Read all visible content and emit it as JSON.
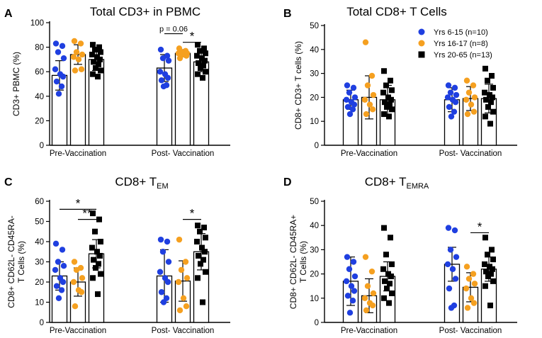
{
  "figure": {
    "colors": {
      "g1": "#1f3fe0",
      "g2": "#f5a020",
      "g3": "#000000"
    },
    "legend": [
      "Yrs 6-15 (n=10)",
      "Yrs 16-17 (n=8)",
      "Yrs 20-65 (n=13)"
    ]
  },
  "chart_data": [
    {
      "type": "bar",
      "panel_letter": "A",
      "title": "Total CD3+ in PBMC",
      "title_sub": "",
      "ylabel_lines": [
        "CD3+ PBMC (%)"
      ],
      "ylim": [
        0,
        100
      ],
      "yticks": [
        0,
        20,
        40,
        60,
        80,
        100
      ],
      "categories": [
        "Pre-Vaccination",
        "Post- Vaccination"
      ],
      "series": [
        {
          "name": "Yrs 6-15 (n=10)",
          "means": [
            57,
            63
          ],
          "sd": [
            12,
            11
          ],
          "points": [
            [
              83,
              81,
              76,
              71,
              62,
              58,
              56,
              52,
              48,
              42
            ],
            [
              78,
              73,
              71,
              69,
              60,
              58,
              55,
              53,
              49,
              48
            ]
          ]
        },
        {
          "name": "Yrs 16-17 (n=8)",
          "means": [
            74,
            75
          ],
          "sd": [
            8,
            3
          ],
          "points": [
            [
              85,
              83,
              76,
              74,
              72,
              70,
              62,
              61
            ],
            [
              79,
              77,
              76,
              75,
              75,
              74,
              73,
              71
            ]
          ]
        },
        {
          "name": "Yrs 20-65 (n=13)",
          "means": [
            70,
            68
          ],
          "sd": [
            9,
            8
          ],
          "points": [
            [
              82,
              80,
              78,
              76,
              74,
              72,
              70,
              68,
              66,
              63,
              61,
              58,
              56
            ],
            [
              82,
              79,
              77,
              75,
              73,
              71,
              69,
              67,
              65,
              63,
              60,
              58,
              55
            ]
          ]
        }
      ],
      "annotations": [
        {
          "text": "p = 0.06",
          "cat": 1,
          "from": 0,
          "to": 1,
          "y": 91
        },
        {
          "text": "*",
          "cat": 1,
          "from": 1,
          "to": 2,
          "y": 84
        }
      ]
    },
    {
      "type": "bar",
      "panel_letter": "B",
      "title": "Total CD8+ T Cells",
      "title_sub": "",
      "ylabel_lines": [
        "CD8+ CD3+ T cells (%)"
      ],
      "ylim": [
        0,
        50
      ],
      "yticks": [
        0,
        10,
        20,
        30,
        40,
        50
      ],
      "categories": [
        "Pre-Vaccination",
        "Post- Vaccination"
      ],
      "series": [
        {
          "name": "Yrs 6-15 (n=10)",
          "means": [
            19,
            19
          ],
          "sd": [
            4,
            5
          ],
          "points": [
            [
              25,
              24,
              22,
              20,
              19,
              18,
              17,
              16,
              15,
              13
            ],
            [
              25,
              24,
              22,
              21,
              20,
              19,
              18,
              16,
              14,
              12
            ]
          ]
        },
        {
          "name": "Yrs 16-17 (n=8)",
          "means": [
            20,
            19.5
          ],
          "sd": [
            9,
            5
          ],
          "points": [
            [
              43,
              29,
              25,
              21,
              19,
              17,
              15,
              13
            ],
            [
              27,
              25,
              22,
              20,
              19,
              17,
              14,
              13
            ]
          ]
        },
        {
          "name": "Yrs 20-65 (n=13)",
          "means": [
            19,
            19.5
          ],
          "sd": [
            6,
            6
          ],
          "points": [
            [
              31,
              27,
              25,
              23,
              22,
              20,
              19,
              18,
              17,
              16,
              15,
              13,
              12
            ],
            [
              32,
              29,
              27,
              24,
              22,
              21,
              20,
              19,
              18,
              16,
              14,
              12,
              9
            ]
          ]
        }
      ],
      "annotations": []
    },
    {
      "type": "bar",
      "panel_letter": "C",
      "title": "CD8+ T",
      "title_sub": "EM",
      "ylabel_lines": [
        "CD8+ CD62L- CD45RA-",
        "T Cells (%)"
      ],
      "ylim": [
        0,
        60
      ],
      "yticks": [
        0,
        10,
        20,
        30,
        40,
        50,
        60
      ],
      "categories": [
        "Pre-Vaccination",
        "Post- Vaccination"
      ],
      "series": [
        {
          "name": "Yrs 6-15 (n=10)",
          "means": [
            23,
            23
          ],
          "sd": [
            7,
            13
          ],
          "points": [
            [
              39,
              36,
              30,
              28,
              26,
              22,
              20,
              18,
              16,
              12
            ],
            [
              41,
              40,
              35,
              30,
              25,
              22,
              20,
              15,
              12,
              10
            ]
          ]
        },
        {
          "name": "Yrs 16-17 (n=8)",
          "means": [
            20,
            20.5
          ],
          "sd": [
            7,
            10
          ],
          "points": [
            [
              30,
              27,
              26,
              22,
              20,
              16,
              15,
              8
            ],
            [
              41,
              30,
              26,
              22,
              20,
              12,
              8,
              6
            ]
          ]
        },
        {
          "name": "Yrs 20-65 (n=13)",
          "means": [
            34,
            35
          ],
          "sd": [
            7,
            9
          ],
          "points": [
            [
              54,
              51,
              45,
              40,
              37,
              35,
              33,
              31,
              29,
              27,
              24,
              22,
              14
            ],
            [
              48,
              47,
              45,
              42,
              40,
              37,
              35,
              33,
              31,
              29,
              25,
              22,
              10
            ]
          ]
        }
      ],
      "annotations": [
        {
          "text": "*",
          "cat": 0,
          "from": 0,
          "to": 2,
          "y": 56
        },
        {
          "text": "**",
          "cat": 0,
          "from": 1,
          "to": 2,
          "y": 51
        },
        {
          "text": "*",
          "cat": 1,
          "from": 1,
          "to": 2,
          "y": 51
        }
      ]
    },
    {
      "type": "bar",
      "panel_letter": "D",
      "title": "CD8+ T",
      "title_sub": "EMRA",
      "ylabel_lines": [
        "CD8+ CD62L- CD45RA+",
        "T Cells (%)"
      ],
      "ylim": [
        0,
        50
      ],
      "yticks": [
        0,
        10,
        20,
        30,
        40,
        50
      ],
      "categories": [
        "Pre-Vaccination",
        "Post- Vaccination"
      ],
      "series": [
        {
          "name": "Yrs 6-15 (n=10)",
          "means": [
            17,
            24
          ],
          "sd": [
            10,
            7
          ],
          "points": [
            [
              27,
              25,
              22,
              19,
              17,
              15,
              13,
              11,
              9,
              4
            ],
            [
              39,
              38,
              30,
              27,
              24,
              22,
              18,
              14,
              7,
              6
            ]
          ]
        },
        {
          "name": "Yrs 16-17 (n=8)",
          "means": [
            11,
            14.5
          ],
          "sd": [
            7,
            6
          ],
          "points": [
            [
              27,
              21,
              15,
              12,
              10,
              8,
              7,
              5
            ],
            [
              23,
              20,
              18,
              16,
              14,
              10,
              8,
              6
            ]
          ]
        },
        {
          "name": "Yrs 20-65 (n=13)",
          "means": [
            19,
            22
          ],
          "sd": [
            6,
            5
          ],
          "points": [
            [
              39,
              35,
              28,
              24,
              22,
              20,
              19,
              17,
              16,
              14,
              12,
              10,
              8
            ],
            [
              35,
              30,
              28,
              26,
              24,
              23,
              22,
              21,
              20,
              19,
              17,
              15,
              7
            ]
          ]
        }
      ],
      "annotations": [
        {
          "text": "*",
          "cat": 1,
          "from": 1,
          "to": 2,
          "y": 37
        }
      ]
    }
  ]
}
